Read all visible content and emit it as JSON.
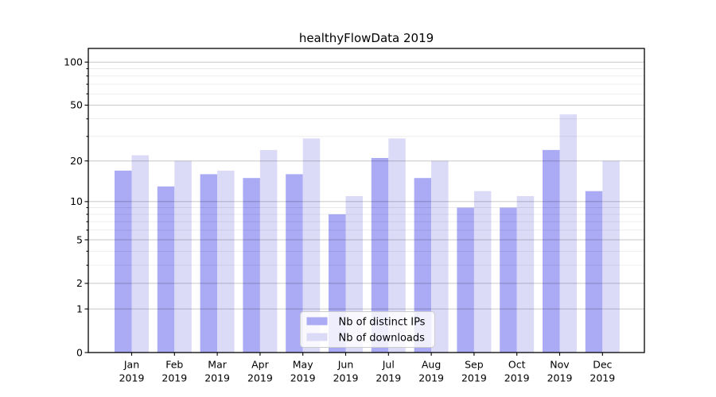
{
  "chart_data": {
    "type": "bar",
    "title": "healthyFlowData 2019",
    "x_year": "2019",
    "categories": [
      "Jan",
      "Feb",
      "Mar",
      "Apr",
      "May",
      "Jun",
      "Jul",
      "Aug",
      "Sep",
      "Oct",
      "Nov",
      "Dec"
    ],
    "series": [
      {
        "name": "Nb of distinct IPs",
        "color": "#aaaaf5",
        "values": [
          17,
          13,
          16,
          15,
          16,
          8,
          21,
          15,
          9,
          9,
          24,
          12
        ]
      },
      {
        "name": "Nb of downloads",
        "color": "#dbdbf8",
        "values": [
          22,
          20,
          17,
          24,
          29,
          11,
          29,
          20,
          12,
          11,
          43,
          20
        ]
      }
    ],
    "y_axis": {
      "scale": "log10(1+x)",
      "major_ticks": [
        100,
        50,
        20,
        10,
        5,
        2,
        1,
        0
      ],
      "minor_gridlines": [
        3,
        4,
        6,
        7,
        8,
        9,
        30,
        40,
        60,
        70,
        80,
        90
      ],
      "range": [
        0,
        127
      ]
    },
    "grid": "on",
    "legend_position": "lower center"
  }
}
